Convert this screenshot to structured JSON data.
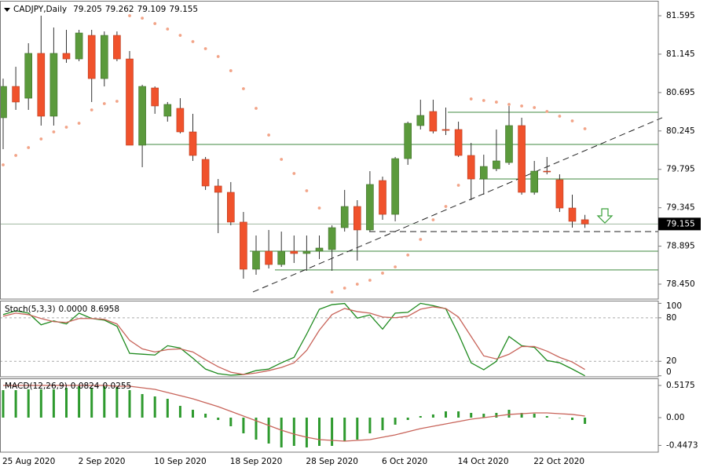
{
  "chart_data": [
    {
      "type": "candlestick",
      "title": "CADJPY,Daily",
      "categories": [
        "25 Aug 2020",
        null,
        null,
        null,
        null,
        null,
        "2 Sep 2020",
        null,
        null,
        null,
        null,
        null,
        "10 Sep 2020",
        null,
        null,
        null,
        null,
        null,
        "18 Sep 2020",
        null,
        null,
        null,
        null,
        null,
        "28 Sep 2020",
        null,
        null,
        null,
        null,
        null,
        "6 Oct 2020",
        null,
        null,
        null,
        null,
        null,
        "14 Oct 2020",
        null,
        null,
        null,
        null,
        null,
        "22 Oct 2020",
        null,
        null,
        null,
        null
      ],
      "open": [
        80.4,
        80.767,
        80.629,
        81.154,
        80.418,
        81.154,
        81.089,
        81.365,
        80.859,
        81.365,
        81.089,
        80.078,
        80.749,
        80.418,
        80.51,
        80.234,
        79.912,
        79.6,
        79.526,
        79.177,
        78.625,
        78.836,
        78.68,
        78.836,
        78.809,
        78.836,
        78.855,
        79.112,
        79.36,
        79.085,
        79.664,
        79.268,
        79.921,
        80.308,
        80.473,
        80.262,
        80.262,
        79.958,
        79.682,
        79.802,
        79.875,
        80.308,
        79.526,
        79.774,
        79.673,
        79.342,
        79.205
      ],
      "high": [
        80.859,
        80.997,
        81.273,
        81.595,
        81.457,
        81.43,
        81.43,
        81.43,
        81.411,
        81.411,
        81.181,
        80.786,
        80.767,
        80.584,
        80.629,
        80.446,
        79.94,
        79.682,
        79.646,
        79.296,
        79.02,
        79.085,
        79.066,
        79.02,
        79.02,
        79.02,
        79.14,
        79.554,
        79.434,
        79.774,
        79.71,
        79.94,
        80.354,
        80.611,
        80.611,
        80.519,
        80.354,
        80.105,
        79.967,
        80.262,
        80.538,
        80.4,
        79.894,
        79.94,
        79.737,
        79.498,
        79.262
      ],
      "low": [
        80.032,
        80.492,
        80.492,
        80.308,
        80.308,
        81.043,
        81.062,
        80.584,
        80.767,
        81.062,
        80.078,
        79.82,
        80.446,
        80.354,
        80.216,
        79.894,
        79.554,
        79.048,
        79.14,
        78.514,
        78.56,
        78.634,
        78.652,
        78.698,
        78.606,
        78.744,
        78.606,
        79.066,
        78.726,
        79.066,
        79.204,
        79.186,
        79.848,
        80.262,
        80.216,
        80.197,
        79.94,
        79.434,
        79.498,
        79.774,
        79.848,
        79.498,
        79.498,
        79.737,
        79.296,
        79.112,
        79.109
      ],
      "close": [
        80.767,
        80.584,
        81.154,
        80.418,
        81.154,
        81.089,
        81.393,
        80.859,
        81.365,
        81.089,
        80.078,
        80.767,
        80.538,
        80.556,
        80.234,
        79.958,
        79.6,
        79.526,
        79.177,
        78.625,
        78.836,
        78.68,
        78.836,
        78.809,
        78.836,
        78.873,
        79.112,
        79.36,
        79.085,
        79.618,
        79.268,
        79.921,
        80.335,
        80.427,
        80.243,
        80.252,
        79.958,
        79.682,
        79.829,
        79.894,
        80.308,
        79.526,
        79.774,
        79.765,
        79.342,
        79.186,
        79.155
      ],
      "color_up": "#5b9a3c",
      "color_down": "#f0522c",
      "sar": [
        79.848,
        79.958,
        80.05,
        80.151,
        80.234,
        80.289,
        80.335,
        80.492,
        80.565,
        80.593,
        81.595,
        81.567,
        81.503,
        81.439,
        81.365,
        81.292,
        81.209,
        81.117,
        80.951,
        80.74,
        80.51,
        80.197,
        79.912,
        79.747,
        79.544,
        79.342,
        78.358,
        78.404,
        78.45,
        78.496,
        78.579,
        78.652,
        78.791,
        78.974,
        79.204,
        79.36,
        79.609,
        80.62,
        80.602,
        80.583,
        80.556,
        80.538,
        80.519,
        80.473,
        80.418,
        80.363,
        80.271
      ],
      "sar_color": "#f2a488",
      "levels": [
        80.464,
        80.087,
        79.682,
        78.836,
        78.616
      ],
      "level_color": "#3f8a3f",
      "dashed_level": 79.066,
      "trendline": [
        78.358,
        80.4
      ],
      "ylim": [
        78.275,
        81.761
      ],
      "yticks": [
        81.595,
        81.145,
        80.695,
        80.245,
        79.795,
        79.345,
        78.895,
        {
          "value": 78.45,
          "label": "78.450"
        }
      ]
    },
    {
      "type": "line",
      "title": "Stoch(5,3,3)",
      "readout": [
        {
          "value": 0,
          "label": "0.0000"
        },
        8.6958
      ],
      "series": [
        {
          "color": "#1e8a1e",
          "values": [
            84.4,
            89.7,
            86.5,
            70.4,
            75.8,
            71.5,
            86.5,
            79.0,
            76.8,
            68.3,
            30.9,
            29.8,
            28.7,
            41.5,
            38.3,
            24.3,
            9.3,
            2.9,
            0.8,
            1.8,
            7.2,
            9.3,
            17.9,
            25.4,
            57.5,
            91.8,
            98.2,
            99.8,
            79.6,
            84.0,
            64.4,
            86.5,
            87.6,
            100,
            96.8,
            92.5,
            57.5,
            17.9,
            8.3,
            20.0,
            54.3,
            41.5,
            39.3,
            21.1,
            17.9,
            9.3,
            0
          ]
        },
        {
          "color": "#c8645a",
          "values": [
            82.2,
            86.5,
            84.4,
            79.0,
            74.7,
            73.6,
            79.0,
            79.0,
            77.9,
            71.5,
            49.0,
            37.2,
            32.9,
            36.1,
            37.2,
            32.9,
            22.2,
            12.5,
            5.0,
            1.8,
            3.9,
            7.2,
            11.5,
            17.9,
            35.0,
            62.9,
            84.4,
            92.9,
            88.6,
            86.5,
            81.1,
            80.1,
            82.2,
            91.9,
            95.1,
            92.9,
            81.1,
            54.3,
            27.5,
            23.3,
            29.7,
            40.4,
            40.4,
            34.0,
            25.4,
            19.0,
            8.6958
          ]
        }
      ],
      "levels": [
        80,
        20
      ],
      "ylim": [
        -1.4,
        102.6
      ],
      "yticks": [
        100,
        80,
        20,
        0
      ]
    },
    {
      "type": "macd",
      "title": "MACD(12,26,9)",
      "readout": [
        0.0824,
        0.0255
      ],
      "histogram": {
        "color": "#2e9a2e",
        "values": [
          0.442,
          0.442,
          0.455,
          0.455,
          0.455,
          0.48,
          0.505,
          0.48,
          0.505,
          0.492,
          0.442,
          0.379,
          0.341,
          0.303,
          0.189,
          0.126,
          0.063,
          -0.038,
          -0.139,
          -0.253,
          -0.354,
          -0.417,
          -0.48,
          -0.455,
          -0.48,
          -0.455,
          -0.455,
          -0.379,
          -0.354,
          -0.253,
          -0.202,
          -0.114,
          -0.038,
          0.025,
          0.051,
          0.101,
          0.101,
          0.076,
          0.063,
          0.076,
          0.126,
          0.076,
          0.063,
          0.025,
          -0.005,
          -0.038,
          -0.101
        ]
      },
      "signal": {
        "color": "#c8645a",
        "values": [
          0.518,
          0.518,
          0.518,
          0.518,
          0.518,
          0.518,
          0.518,
          0.518,
          0.518,
          0.505,
          0.505,
          0.48,
          0.455,
          0.404,
          0.354,
          0.303,
          0.24,
          0.177,
          0.101,
          0.025,
          -0.051,
          -0.126,
          -0.202,
          -0.265,
          -0.316,
          -0.354,
          -0.366,
          -0.379,
          -0.366,
          -0.354,
          -0.316,
          -0.278,
          -0.227,
          -0.177,
          -0.139,
          -0.101,
          -0.063,
          -0.025,
          0,
          0.025,
          0.051,
          0.063,
          0.076,
          0.076,
          0.063,
          0.051,
          0.025
        ]
      },
      "ylim": [
        -0.556,
        0.619
      ],
      "yticks": [
        0.5175,
        {
          "value": 0,
          "label": "0.00"
        },
        -0.4473
      ]
    }
  ]
}
